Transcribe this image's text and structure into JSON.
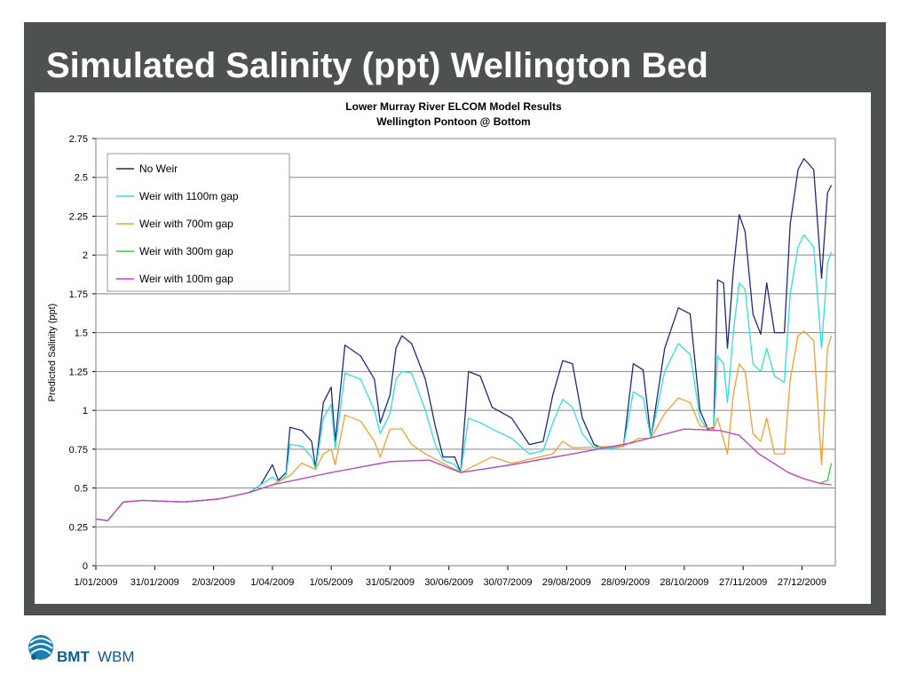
{
  "slide": {
    "title": "Simulated Salinity (ppt) Wellington Bed"
  },
  "logo": {
    "name": "BMT",
    "sub": "WBM"
  },
  "colors": {
    "frame": "#4d5250",
    "logo": "#0e5a8a"
  },
  "chart_data": {
    "type": "line",
    "title": "Lower Murray River ELCOM Model Results",
    "subtitle": "Wellington Pontoon @ Bottom",
    "xlabel": "",
    "ylabel": "Predicted Salinity (ppt)",
    "xlim": [
      "1/01/2009",
      "13/01/2010"
    ],
    "ylim": [
      0,
      2.75
    ],
    "yticks": [
      0,
      0.25,
      0.5,
      0.75,
      1,
      1.25,
      1.5,
      1.75,
      2,
      2.25,
      2.5,
      2.75
    ],
    "ytick_labels": [
      "0",
      "0.25",
      "0.5",
      "0.75",
      "1",
      "1.25",
      "1.5",
      "1.75",
      "2",
      "2.25",
      "2.5",
      "2.75"
    ],
    "xticks": [
      "1/01/2009",
      "31/01/2009",
      "2/03/2009",
      "1/04/2009",
      "1/05/2009",
      "31/05/2009",
      "30/06/2009",
      "30/07/2009",
      "29/08/2009",
      "28/09/2009",
      "28/10/2009",
      "27/11/2009",
      "27/12/2009"
    ],
    "grid": {
      "horizontal": true,
      "vertical": false
    },
    "legend": "top-left",
    "series": [
      {
        "name": "No Weir",
        "color": "#1f2a7a",
        "points": [
          [
            "1/01/2009",
            0.3
          ],
          [
            "7/01/2009",
            0.29
          ],
          [
            "15/01/2009",
            0.41
          ],
          [
            "25/01/2009",
            0.42
          ],
          [
            "15/02/2009",
            0.41
          ],
          [
            "5/03/2009",
            0.43
          ],
          [
            "20/03/2009",
            0.47
          ],
          [
            "26/03/2009",
            0.52
          ],
          [
            "1/04/2009",
            0.65
          ],
          [
            "4/04/2009",
            0.55
          ],
          [
            "8/04/2009",
            0.6
          ],
          [
            "10/04/2009",
            0.89
          ],
          [
            "16/04/2009",
            0.87
          ],
          [
            "21/04/2009",
            0.8
          ],
          [
            "23/04/2009",
            0.63
          ],
          [
            "27/04/2009",
            1.05
          ],
          [
            "1/05/2009",
            1.15
          ],
          [
            "3/05/2009",
            0.8
          ],
          [
            "8/05/2009",
            1.42
          ],
          [
            "16/05/2009",
            1.35
          ],
          [
            "23/05/2009",
            1.2
          ],
          [
            "26/05/2009",
            0.92
          ],
          [
            "31/05/2009",
            1.1
          ],
          [
            "3/06/2009",
            1.4
          ],
          [
            "6/06/2009",
            1.48
          ],
          [
            "11/06/2009",
            1.43
          ],
          [
            "18/06/2009",
            1.2
          ],
          [
            "23/06/2009",
            0.9
          ],
          [
            "27/06/2009",
            0.7
          ],
          [
            "3/07/2009",
            0.7
          ],
          [
            "6/07/2009",
            0.6
          ],
          [
            "10/07/2009",
            1.25
          ],
          [
            "16/07/2009",
            1.22
          ],
          [
            "22/07/2009",
            1.02
          ],
          [
            "1/08/2009",
            0.95
          ],
          [
            "10/08/2009",
            0.78
          ],
          [
            "17/08/2009",
            0.8
          ],
          [
            "22/08/2009",
            1.1
          ],
          [
            "27/08/2009",
            1.32
          ],
          [
            "1/09/2009",
            1.3
          ],
          [
            "6/09/2009",
            0.95
          ],
          [
            "12/09/2009",
            0.78
          ],
          [
            "18/09/2009",
            0.75
          ],
          [
            "27/09/2009",
            0.77
          ],
          [
            "2/10/2009",
            1.3
          ],
          [
            "7/10/2009",
            1.26
          ],
          [
            "11/10/2009",
            0.82
          ],
          [
            "18/10/2009",
            1.4
          ],
          [
            "25/10/2009",
            1.66
          ],
          [
            "31/10/2009",
            1.62
          ],
          [
            "5/11/2009",
            1.0
          ],
          [
            "9/11/2009",
            0.88
          ],
          [
            "12/11/2009",
            0.89
          ],
          [
            "14/11/2009",
            1.84
          ],
          [
            "17/11/2009",
            1.82
          ],
          [
            "19/11/2009",
            1.4
          ],
          [
            "22/11/2009",
            1.9
          ],
          [
            "25/11/2009",
            2.26
          ],
          [
            "28/11/2009",
            2.15
          ],
          [
            "2/12/2009",
            1.62
          ],
          [
            "6/12/2009",
            1.49
          ],
          [
            "9/12/2009",
            1.82
          ],
          [
            "13/12/2009",
            1.5
          ],
          [
            "18/12/2009",
            1.5
          ],
          [
            "21/12/2009",
            2.2
          ],
          [
            "25/12/2009",
            2.55
          ],
          [
            "28/12/2009",
            2.62
          ],
          [
            "2/01/2010",
            2.55
          ],
          [
            "6/01/2010",
            1.85
          ],
          [
            "9/01/2010",
            2.4
          ],
          [
            "11/01/2010",
            2.45
          ]
        ]
      },
      {
        "name": "Weir with 1100m gap",
        "color": "#33dddd",
        "points": [
          [
            "1/01/2009",
            0.3
          ],
          [
            "7/01/2009",
            0.29
          ],
          [
            "15/01/2009",
            0.41
          ],
          [
            "25/01/2009",
            0.42
          ],
          [
            "15/02/2009",
            0.41
          ],
          [
            "5/03/2009",
            0.43
          ],
          [
            "20/03/2009",
            0.47
          ],
          [
            "26/03/2009",
            0.52
          ],
          [
            "1/04/2009",
            0.57
          ],
          [
            "4/04/2009",
            0.54
          ],
          [
            "8/04/2009",
            0.58
          ],
          [
            "10/04/2009",
            0.78
          ],
          [
            "16/04/2009",
            0.77
          ],
          [
            "21/04/2009",
            0.7
          ],
          [
            "23/04/2009",
            0.62
          ],
          [
            "27/04/2009",
            0.95
          ],
          [
            "1/05/2009",
            1.04
          ],
          [
            "3/05/2009",
            0.75
          ],
          [
            "8/05/2009",
            1.24
          ],
          [
            "16/05/2009",
            1.2
          ],
          [
            "23/05/2009",
            1.0
          ],
          [
            "26/05/2009",
            0.85
          ],
          [
            "31/05/2009",
            0.98
          ],
          [
            "3/06/2009",
            1.2
          ],
          [
            "6/06/2009",
            1.25
          ],
          [
            "11/06/2009",
            1.24
          ],
          [
            "18/06/2009",
            1.0
          ],
          [
            "23/06/2009",
            0.78
          ],
          [
            "27/06/2009",
            0.68
          ],
          [
            "3/07/2009",
            0.65
          ],
          [
            "6/07/2009",
            0.6
          ],
          [
            "10/07/2009",
            0.95
          ],
          [
            "16/07/2009",
            0.92
          ],
          [
            "22/07/2009",
            0.88
          ],
          [
            "1/08/2009",
            0.82
          ],
          [
            "10/08/2009",
            0.72
          ],
          [
            "17/08/2009",
            0.74
          ],
          [
            "22/08/2009",
            0.92
          ],
          [
            "27/08/2009",
            1.07
          ],
          [
            "1/09/2009",
            1.02
          ],
          [
            "6/09/2009",
            0.85
          ],
          [
            "12/09/2009",
            0.76
          ],
          [
            "18/09/2009",
            0.75
          ],
          [
            "27/09/2009",
            0.77
          ],
          [
            "2/10/2009",
            1.12
          ],
          [
            "7/10/2009",
            1.08
          ],
          [
            "11/10/2009",
            0.82
          ],
          [
            "18/10/2009",
            1.25
          ],
          [
            "25/10/2009",
            1.43
          ],
          [
            "31/10/2009",
            1.36
          ],
          [
            "5/11/2009",
            0.95
          ],
          [
            "9/11/2009",
            0.87
          ],
          [
            "12/11/2009",
            0.88
          ],
          [
            "14/11/2009",
            1.35
          ],
          [
            "17/11/2009",
            1.3
          ],
          [
            "19/11/2009",
            1.05
          ],
          [
            "22/11/2009",
            1.5
          ],
          [
            "25/11/2009",
            1.82
          ],
          [
            "28/11/2009",
            1.78
          ],
          [
            "2/12/2009",
            1.3
          ],
          [
            "6/12/2009",
            1.25
          ],
          [
            "9/12/2009",
            1.4
          ],
          [
            "13/12/2009",
            1.22
          ],
          [
            "18/12/2009",
            1.18
          ],
          [
            "21/12/2009",
            1.75
          ],
          [
            "25/12/2009",
            2.05
          ],
          [
            "28/12/2009",
            2.13
          ],
          [
            "2/01/2010",
            2.05
          ],
          [
            "6/01/2010",
            1.4
          ],
          [
            "9/01/2010",
            1.95
          ],
          [
            "11/01/2010",
            2.02
          ]
        ]
      },
      {
        "name": "Weir with 700m gap",
        "color": "#f0a030",
        "points": [
          [
            "1/01/2009",
            0.3
          ],
          [
            "7/01/2009",
            0.29
          ],
          [
            "15/01/2009",
            0.41
          ],
          [
            "25/01/2009",
            0.42
          ],
          [
            "15/02/2009",
            0.41
          ],
          [
            "5/03/2009",
            0.43
          ],
          [
            "20/03/2009",
            0.47
          ],
          [
            "1/04/2009",
            0.52
          ],
          [
            "10/04/2009",
            0.58
          ],
          [
            "16/04/2009",
            0.66
          ],
          [
            "23/04/2009",
            0.62
          ],
          [
            "27/04/2009",
            0.72
          ],
          [
            "1/05/2009",
            0.75
          ],
          [
            "3/05/2009",
            0.65
          ],
          [
            "8/05/2009",
            0.97
          ],
          [
            "16/05/2009",
            0.93
          ],
          [
            "23/05/2009",
            0.8
          ],
          [
            "26/05/2009",
            0.7
          ],
          [
            "31/05/2009",
            0.88
          ],
          [
            "6/06/2009",
            0.88
          ],
          [
            "11/06/2009",
            0.78
          ],
          [
            "18/06/2009",
            0.72
          ],
          [
            "27/06/2009",
            0.66
          ],
          [
            "6/07/2009",
            0.6
          ],
          [
            "22/07/2009",
            0.7
          ],
          [
            "1/08/2009",
            0.66
          ],
          [
            "22/08/2009",
            0.72
          ],
          [
            "27/08/2009",
            0.8
          ],
          [
            "1/09/2009",
            0.76
          ],
          [
            "27/09/2009",
            0.77
          ],
          [
            "5/10/2009",
            0.82
          ],
          [
            "11/10/2009",
            0.82
          ],
          [
            "18/10/2009",
            0.98
          ],
          [
            "25/10/2009",
            1.08
          ],
          [
            "31/10/2009",
            1.05
          ],
          [
            "5/11/2009",
            0.9
          ],
          [
            "12/11/2009",
            0.88
          ],
          [
            "14/11/2009",
            0.95
          ],
          [
            "19/11/2009",
            0.72
          ],
          [
            "22/11/2009",
            1.1
          ],
          [
            "25/11/2009",
            1.3
          ],
          [
            "28/11/2009",
            1.25
          ],
          [
            "2/12/2009",
            0.85
          ],
          [
            "6/12/2009",
            0.8
          ],
          [
            "9/12/2009",
            0.95
          ],
          [
            "13/12/2009",
            0.72
          ],
          [
            "18/12/2009",
            0.72
          ],
          [
            "21/12/2009",
            1.2
          ],
          [
            "25/12/2009",
            1.48
          ],
          [
            "28/12/2009",
            1.51
          ],
          [
            "2/01/2010",
            1.45
          ],
          [
            "6/01/2010",
            0.65
          ],
          [
            "9/01/2010",
            1.4
          ],
          [
            "11/01/2010",
            1.48
          ]
        ]
      },
      {
        "name": "Weir with 300m gap",
        "color": "#33cc33",
        "points": [
          [
            "1/01/2009",
            0.3
          ],
          [
            "7/01/2009",
            0.29
          ],
          [
            "15/01/2009",
            0.41
          ],
          [
            "25/01/2009",
            0.42
          ],
          [
            "15/02/2009",
            0.41
          ],
          [
            "5/03/2009",
            0.43
          ],
          [
            "20/03/2009",
            0.47
          ],
          [
            "1/04/2009",
            0.52
          ],
          [
            "1/05/2009",
            0.6
          ],
          [
            "31/05/2009",
            0.67
          ],
          [
            "20/06/2009",
            0.68
          ],
          [
            "6/07/2009",
            0.6
          ],
          [
            "1/08/2009",
            0.65
          ],
          [
            "1/09/2009",
            0.72
          ],
          [
            "1/10/2009",
            0.79
          ],
          [
            "28/10/2009",
            0.88
          ],
          [
            "15/11/2009",
            0.87
          ],
          [
            "25/11/2009",
            0.84
          ],
          [
            "5/12/2009",
            0.72
          ],
          [
            "20/12/2009",
            0.6
          ],
          [
            "28/12/2009",
            0.56
          ],
          [
            "5/01/2010",
            0.53
          ],
          [
            "9/01/2010",
            0.55
          ],
          [
            "11/01/2010",
            0.66
          ]
        ]
      },
      {
        "name": "Weir with 100m gap",
        "color": "#cc44cc",
        "points": [
          [
            "1/01/2009",
            0.3
          ],
          [
            "7/01/2009",
            0.29
          ],
          [
            "15/01/2009",
            0.41
          ],
          [
            "25/01/2009",
            0.42
          ],
          [
            "15/02/2009",
            0.41
          ],
          [
            "5/03/2009",
            0.43
          ],
          [
            "20/03/2009",
            0.47
          ],
          [
            "1/04/2009",
            0.52
          ],
          [
            "1/05/2009",
            0.6
          ],
          [
            "31/05/2009",
            0.67
          ],
          [
            "20/06/2009",
            0.68
          ],
          [
            "6/07/2009",
            0.6
          ],
          [
            "1/08/2009",
            0.65
          ],
          [
            "1/09/2009",
            0.72
          ],
          [
            "1/10/2009",
            0.79
          ],
          [
            "28/10/2009",
            0.88
          ],
          [
            "15/11/2009",
            0.87
          ],
          [
            "25/11/2009",
            0.84
          ],
          [
            "5/12/2009",
            0.72
          ],
          [
            "20/12/2009",
            0.6
          ],
          [
            "28/12/2009",
            0.56
          ],
          [
            "5/01/2010",
            0.53
          ],
          [
            "11/01/2010",
            0.52
          ]
        ]
      }
    ]
  }
}
